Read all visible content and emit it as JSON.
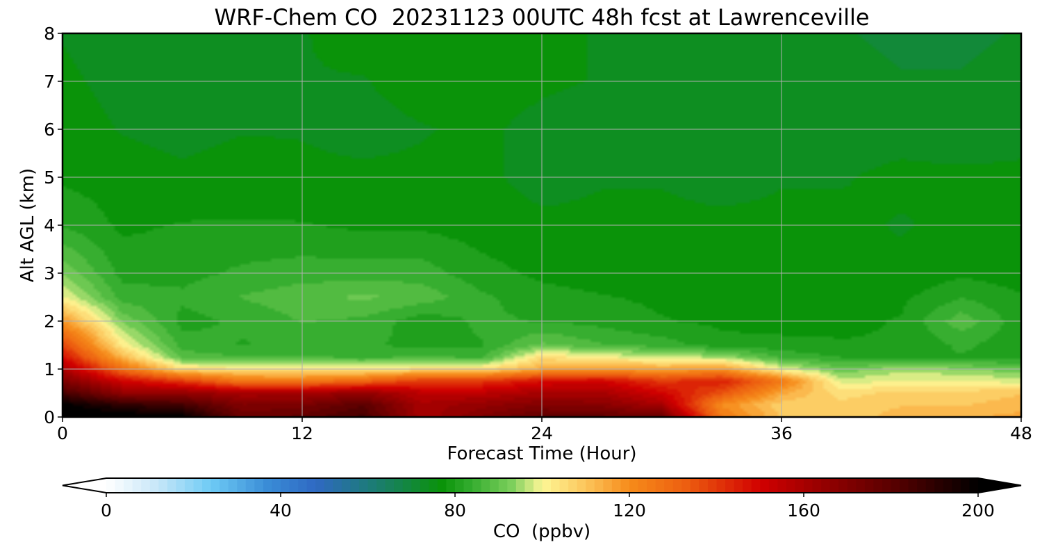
{
  "chart_data": {
    "type": "heatmap",
    "title": "WRF-Chem CO  20231123 00UTC 48h fcst at Lawrenceville",
    "xlabel": "Forecast Time (Hour)",
    "ylabel": "Alt AGL (km)",
    "xlim": [
      0,
      48
    ],
    "ylim": [
      0,
      8
    ],
    "x_ticks": [
      0,
      12,
      24,
      36,
      48
    ],
    "y_ticks": [
      0,
      1,
      2,
      3,
      4,
      5,
      6,
      7,
      8
    ],
    "grid": true,
    "x": [
      0,
      3,
      6,
      9,
      12,
      15,
      18,
      21,
      24,
      27,
      30,
      33,
      36,
      39,
      42,
      45,
      48
    ],
    "y": [
      0,
      0.25,
      0.5,
      0.75,
      1.0,
      1.25,
      1.5,
      2.0,
      2.5,
      3.0,
      4.0,
      5.0,
      6.0,
      7.0,
      8.0
    ],
    "z": [
      [
        205,
        203,
        200,
        175,
        178,
        185,
        160,
        170,
        178,
        178,
        175,
        125,
        110,
        108,
        112,
        113,
        115
      ],
      [
        200,
        190,
        185,
        170,
        172,
        180,
        160,
        165,
        170,
        168,
        160,
        120,
        108,
        108,
        110,
        110,
        112
      ],
      [
        185,
        165,
        165,
        160,
        160,
        165,
        155,
        155,
        160,
        160,
        150,
        135,
        115,
        105,
        108,
        108,
        110
      ],
      [
        170,
        150,
        140,
        125,
        125,
        130,
        140,
        140,
        148,
        150,
        140,
        145,
        125,
        98,
        100,
        100,
        98
      ],
      [
        160,
        128,
        105,
        104,
        103,
        102,
        105,
        105,
        115,
        117,
        115,
        118,
        100,
        90,
        95,
        93,
        90
      ],
      [
        148,
        112,
        88,
        86,
        86,
        85,
        86,
        85,
        105,
        100,
        98,
        95,
        85,
        82,
        82,
        82,
        80
      ],
      [
        138,
        102,
        84,
        82,
        83,
        83,
        81,
        82,
        90,
        86,
        84,
        80,
        80,
        79,
        79,
        83,
        80
      ],
      [
        118,
        92,
        81,
        83,
        86,
        85,
        80,
        83,
        82,
        81,
        79,
        78,
        77,
        78,
        79,
        88,
        80
      ],
      [
        100,
        84,
        83,
        86,
        88,
        90,
        88,
        83,
        80,
        79,
        78,
        77,
        77,
        76,
        78,
        82,
        79
      ],
      [
        92,
        81,
        81,
        83,
        84,
        84,
        84,
        80,
        78,
        77,
        77,
        76,
        76,
        76,
        76,
        78,
        77
      ],
      [
        82,
        78,
        79,
        79,
        79,
        78,
        78,
        77,
        76,
        76,
        76,
        76,
        76,
        76,
        75,
        76,
        76
      ],
      [
        78,
        77,
        76,
        77,
        76,
        76,
        76,
        76,
        74,
        75,
        75,
        74,
        75,
        75,
        76,
        76,
        76
      ],
      [
        77,
        75,
        74,
        75,
        75,
        74,
        75,
        76,
        74,
        73,
        73,
        74,
        75,
        74,
        74,
        73,
        74
      ],
      [
        76,
        74,
        73,
        74,
        75,
        75,
        77,
        77,
        76,
        75,
        75,
        74,
        73,
        73,
        72,
        72,
        73
      ],
      [
        75,
        73,
        73,
        74,
        75,
        77,
        78,
        77,
        76,
        75,
        75,
        74,
        73,
        72,
        71,
        71,
        72
      ]
    ]
  },
  "colorbar": {
    "label": "CO  (ppbv)",
    "ticks": [
      0,
      40,
      80,
      120,
      160,
      200
    ],
    "range": [
      0,
      200
    ],
    "extend": "both",
    "colors": [
      "#ffffff",
      "#c5e6f8",
      "#6ecbf5",
      "#3a8cd6",
      "#2f69c3",
      "#1b7d70",
      "#0a9309",
      "#2faa2b",
      "#7ccf5c",
      "#fdf796",
      "#fcc55b",
      "#f68b1a",
      "#ed5e10",
      "#d10000",
      "#9b0000",
      "#5a0000",
      "#000000"
    ],
    "color_stops": [
      0,
      12,
      24,
      37,
      48,
      62,
      77,
      83,
      93,
      100,
      110,
      120,
      133,
      150,
      163,
      180,
      200
    ]
  }
}
